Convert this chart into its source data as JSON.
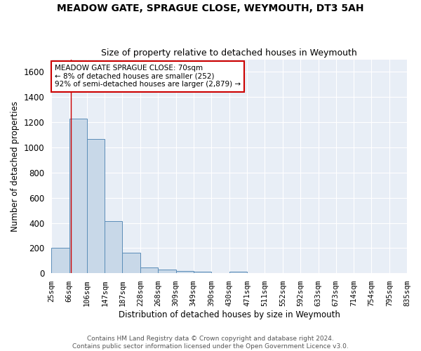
{
  "title": "MEADOW GATE, SPRAGUE CLOSE, WEYMOUTH, DT3 5AH",
  "subtitle": "Size of property relative to detached houses in Weymouth",
  "xlabel": "Distribution of detached houses by size in Weymouth",
  "ylabel": "Number of detached properties",
  "bar_color": "#c8d8e8",
  "bar_edge_color": "#5b8db8",
  "background_color": "#e8eef6",
  "grid_color": "#ffffff",
  "annotation_text": "MEADOW GATE SPRAGUE CLOSE: 70sqm\n← 8% of detached houses are smaller (252)\n92% of semi-detached houses are larger (2,879) →",
  "annotation_box_color": "#ffffff",
  "annotation_box_edge_color": "#cc0000",
  "vline_x": 70,
  "vline_color": "#cc0000",
  "bins": [
    25,
    66,
    106,
    147,
    187,
    228,
    268,
    309,
    349,
    390,
    430,
    471,
    511,
    552,
    592,
    633,
    673,
    714,
    754,
    795,
    835
  ],
  "counts": [
    200,
    1230,
    1065,
    415,
    165,
    47,
    27,
    20,
    13,
    0,
    13,
    0,
    0,
    0,
    0,
    0,
    0,
    0,
    0,
    0
  ],
  "footnote": "Contains HM Land Registry data © Crown copyright and database right 2024.\nContains public sector information licensed under the Open Government Licence v3.0.",
  "ylim": [
    0,
    1700
  ],
  "yticks": [
    0,
    200,
    400,
    600,
    800,
    1000,
    1200,
    1400,
    1600
  ],
  "figsize": [
    6.0,
    5.0
  ],
  "dpi": 100
}
